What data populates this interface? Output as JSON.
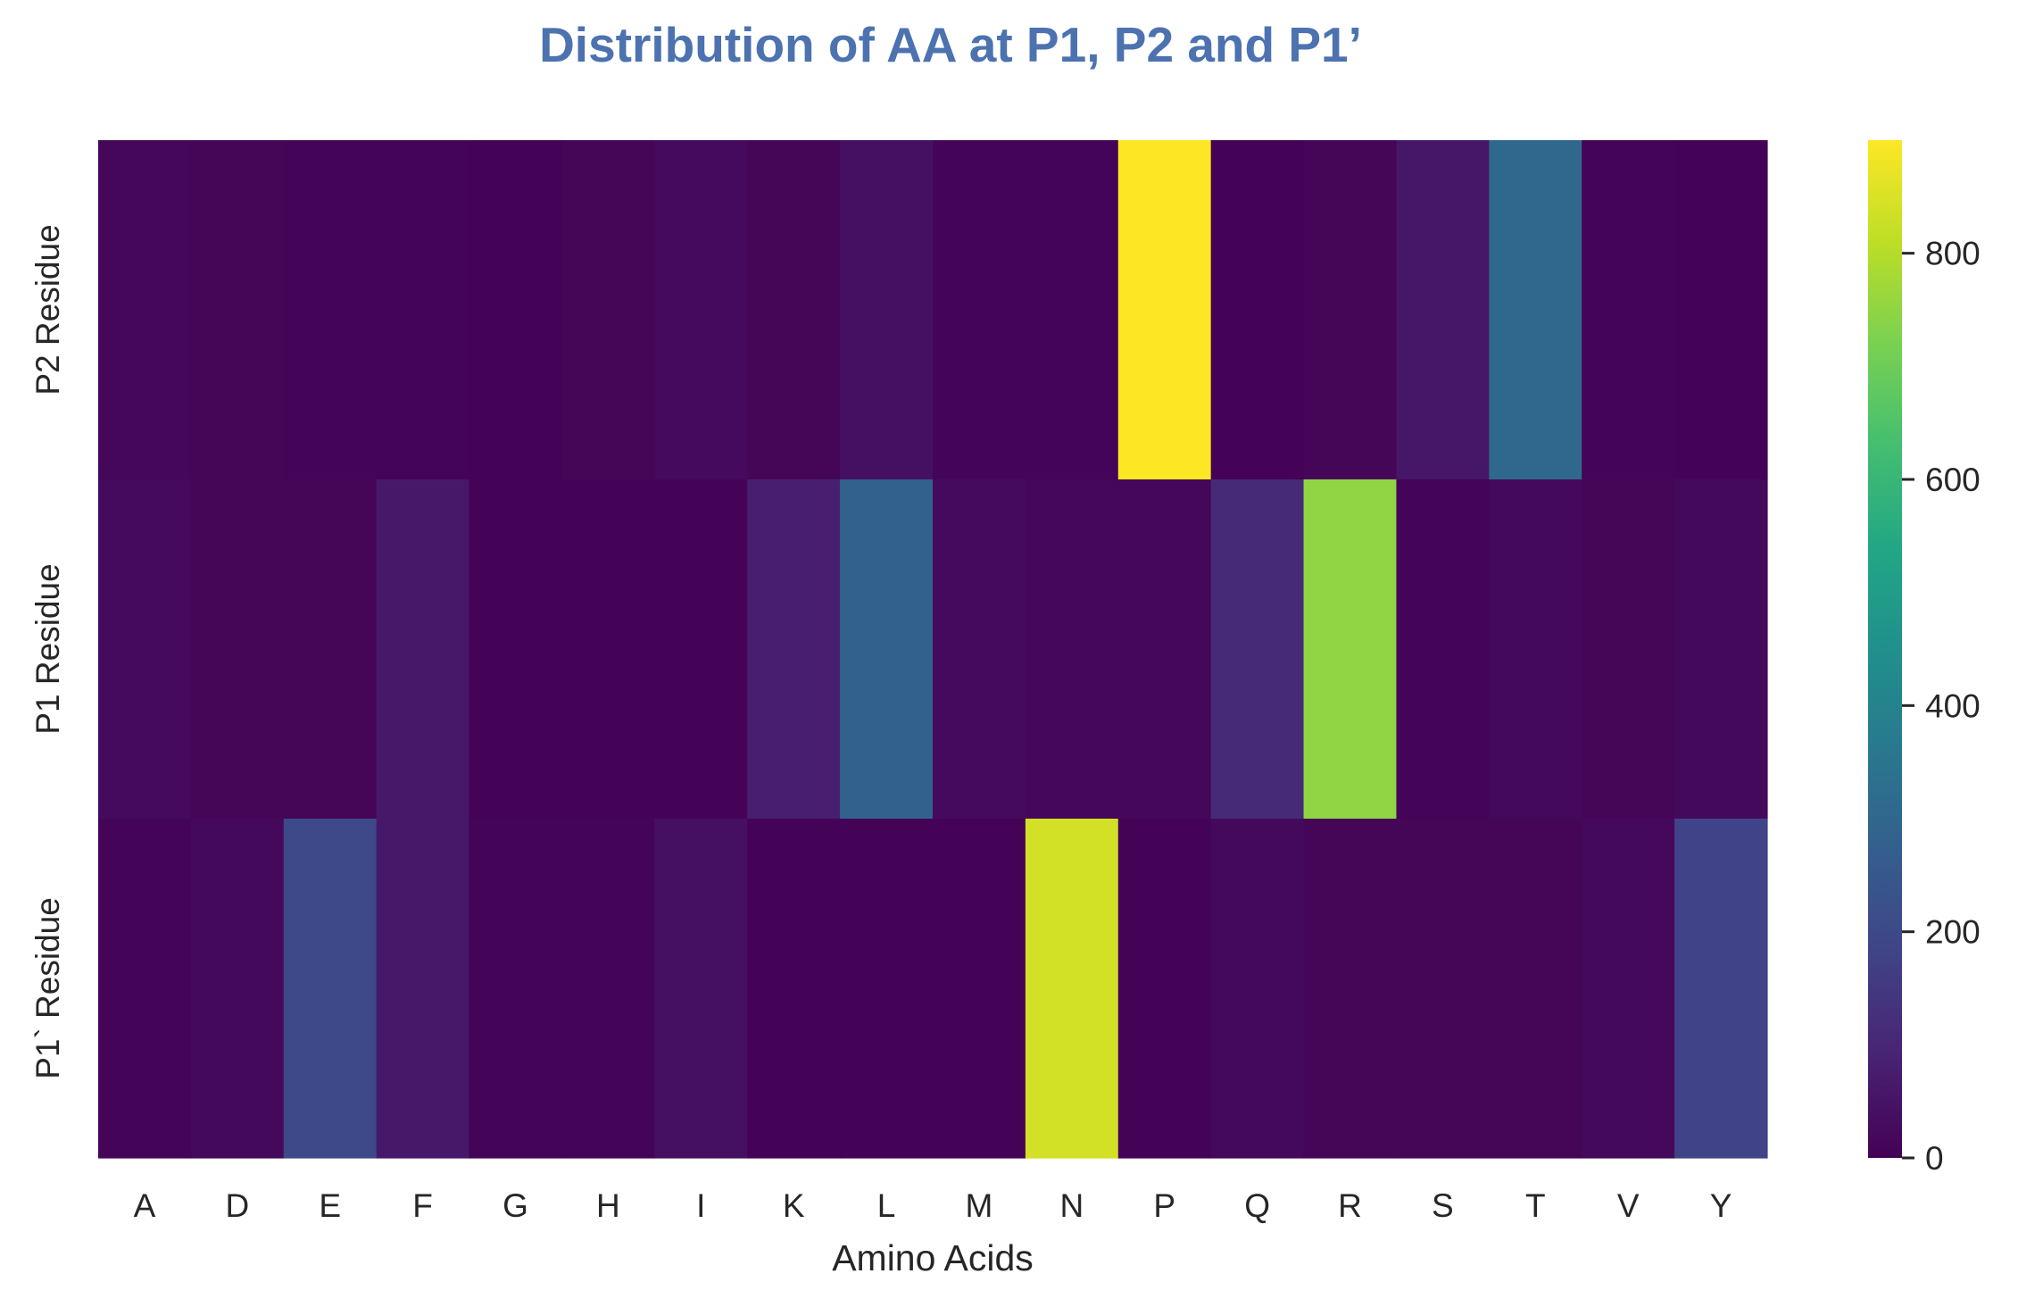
{
  "chart_data": {
    "type": "heatmap",
    "title": "Distribution of AA at P1, P2 and P1’",
    "xlabel": "Amino Acids",
    "ylabel": "",
    "x_categories": [
      "A",
      "D",
      "E",
      "F",
      "G",
      "H",
      "I",
      "K",
      "L",
      "M",
      "N",
      "P",
      "Q",
      "R",
      "S",
      "T",
      "V",
      "Y"
    ],
    "y_categories": [
      "P2 Residue",
      "P1 Residue",
      "P1` Residue"
    ],
    "values": [
      [
        15,
        12,
        10,
        8,
        5,
        12,
        25,
        12,
        40,
        10,
        8,
        900,
        5,
        12,
        55,
        300,
        8,
        5
      ],
      [
        25,
        12,
        12,
        60,
        5,
        5,
        5,
        80,
        280,
        25,
        15,
        15,
        110,
        750,
        8,
        20,
        12,
        20
      ],
      [
        8,
        20,
        200,
        60,
        8,
        8,
        40,
        5,
        5,
        5,
        840,
        5,
        20,
        12,
        12,
        12,
        20,
        180
      ]
    ],
    "colormap": "viridis",
    "vmin": 0,
    "vmax": 900,
    "colorbar_ticks": [
      0,
      200,
      400,
      600,
      800
    ]
  }
}
